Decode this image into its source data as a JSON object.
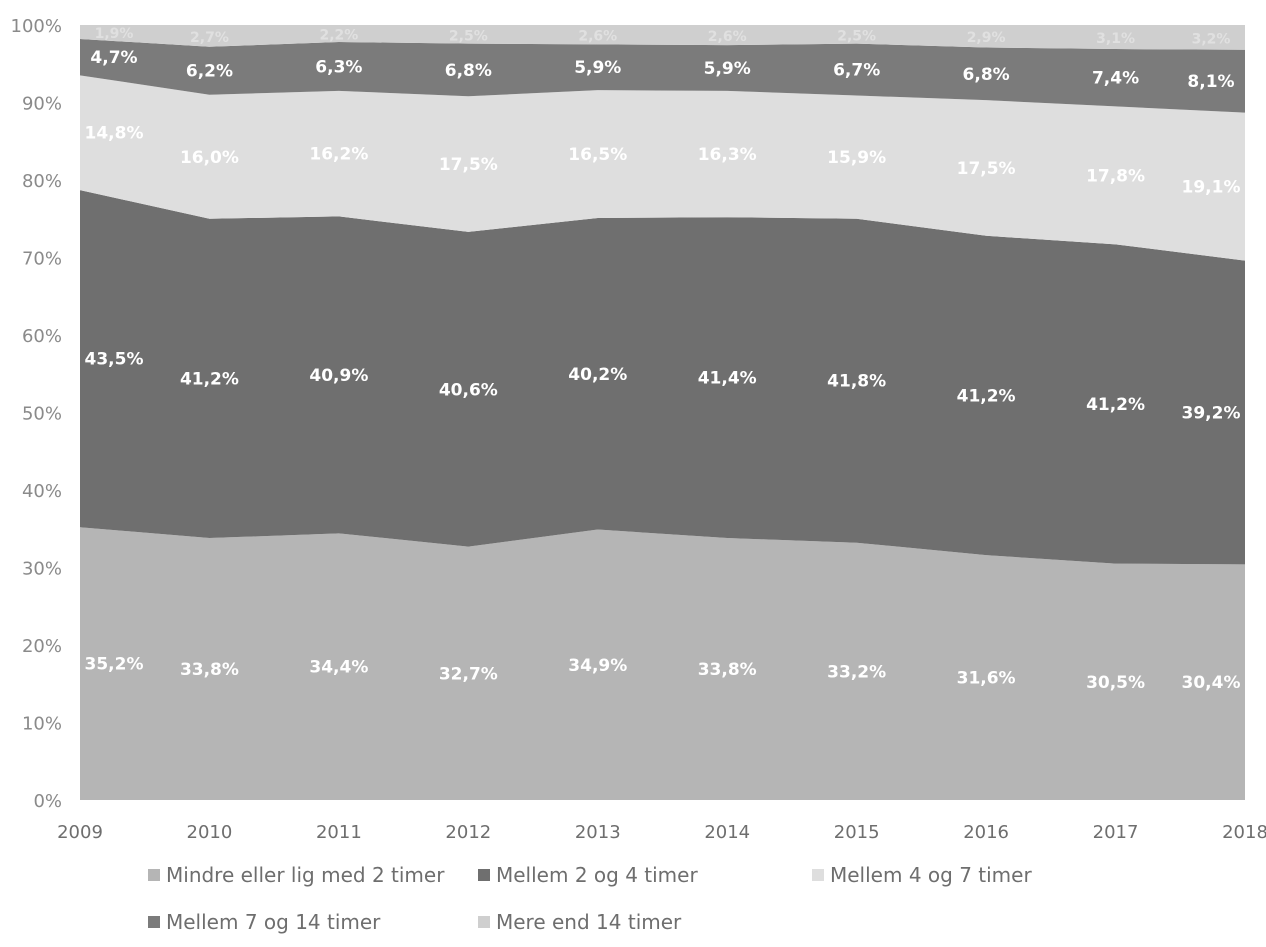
{
  "chart_data": {
    "type": "area",
    "stacked": true,
    "percent": true,
    "x": [
      "2009",
      "2010",
      "2011",
      "2012",
      "2013",
      "2014",
      "2015",
      "2016",
      "2017",
      "2018"
    ],
    "y_ticks": [
      "0%",
      "10%",
      "20%",
      "30%",
      "40%",
      "50%",
      "60%",
      "70%",
      "80%",
      "90%",
      "100%"
    ],
    "ylim": [
      0,
      100
    ],
    "grid": false,
    "legend_position": "bottom",
    "series": [
      {
        "name": "Mindre eller lig med 2 timer",
        "color": "#b5b5b5",
        "values": [
          35.2,
          33.8,
          34.4,
          32.7,
          34.9,
          33.8,
          33.2,
          31.6,
          30.5,
          30.4
        ],
        "labels": [
          "35,2%",
          "33,8%",
          "34,4%",
          "32,7%",
          "34,9%",
          "33,8%",
          "33,2%",
          "31,6%",
          "30,5%",
          "30,4%"
        ]
      },
      {
        "name": "Mellem 2 og 4 timer",
        "color": "#6f6f6f",
        "values": [
          43.5,
          41.2,
          40.9,
          40.6,
          40.2,
          41.4,
          41.8,
          41.2,
          41.2,
          39.2
        ],
        "labels": [
          "43,5%",
          "41,2%",
          "40,9%",
          "40,6%",
          "40,2%",
          "41,4%",
          "41,8%",
          "41,2%",
          "41,2%",
          "39,2%"
        ]
      },
      {
        "name": "Mellem 4 og 7 timer",
        "color": "#dedede",
        "values": [
          14.8,
          16.0,
          16.2,
          17.5,
          16.5,
          16.3,
          15.9,
          17.5,
          17.8,
          19.1
        ],
        "labels": [
          "14,8%",
          "16,0%",
          "16,2%",
          "17,5%",
          "16,5%",
          "16,3%",
          "15,9%",
          "17,5%",
          "17,8%",
          "19,1%"
        ]
      },
      {
        "name": "Mellem 7 og 14 timer",
        "color": "#7b7b7b",
        "values": [
          4.7,
          6.2,
          6.3,
          6.8,
          5.9,
          5.9,
          6.7,
          6.8,
          7.4,
          8.1
        ],
        "labels": [
          "4,7%",
          "6,2%",
          "6,3%",
          "6,8%",
          "5,9%",
          "5,9%",
          "6,7%",
          "6,8%",
          "7,4%",
          "8,1%"
        ]
      },
      {
        "name": "Mere end 14 timer",
        "color": "#cfcfcf",
        "values": [
          1.9,
          2.7,
          2.2,
          2.5,
          2.6,
          2.6,
          2.5,
          2.9,
          3.1,
          3.2
        ],
        "labels": [
          "1,9%",
          "2,7%",
          "2,2%",
          "2,5%",
          "2,6%",
          "2,6%",
          "2,5%",
          "2,9%",
          "3,1%",
          "3,2%"
        ]
      }
    ]
  }
}
